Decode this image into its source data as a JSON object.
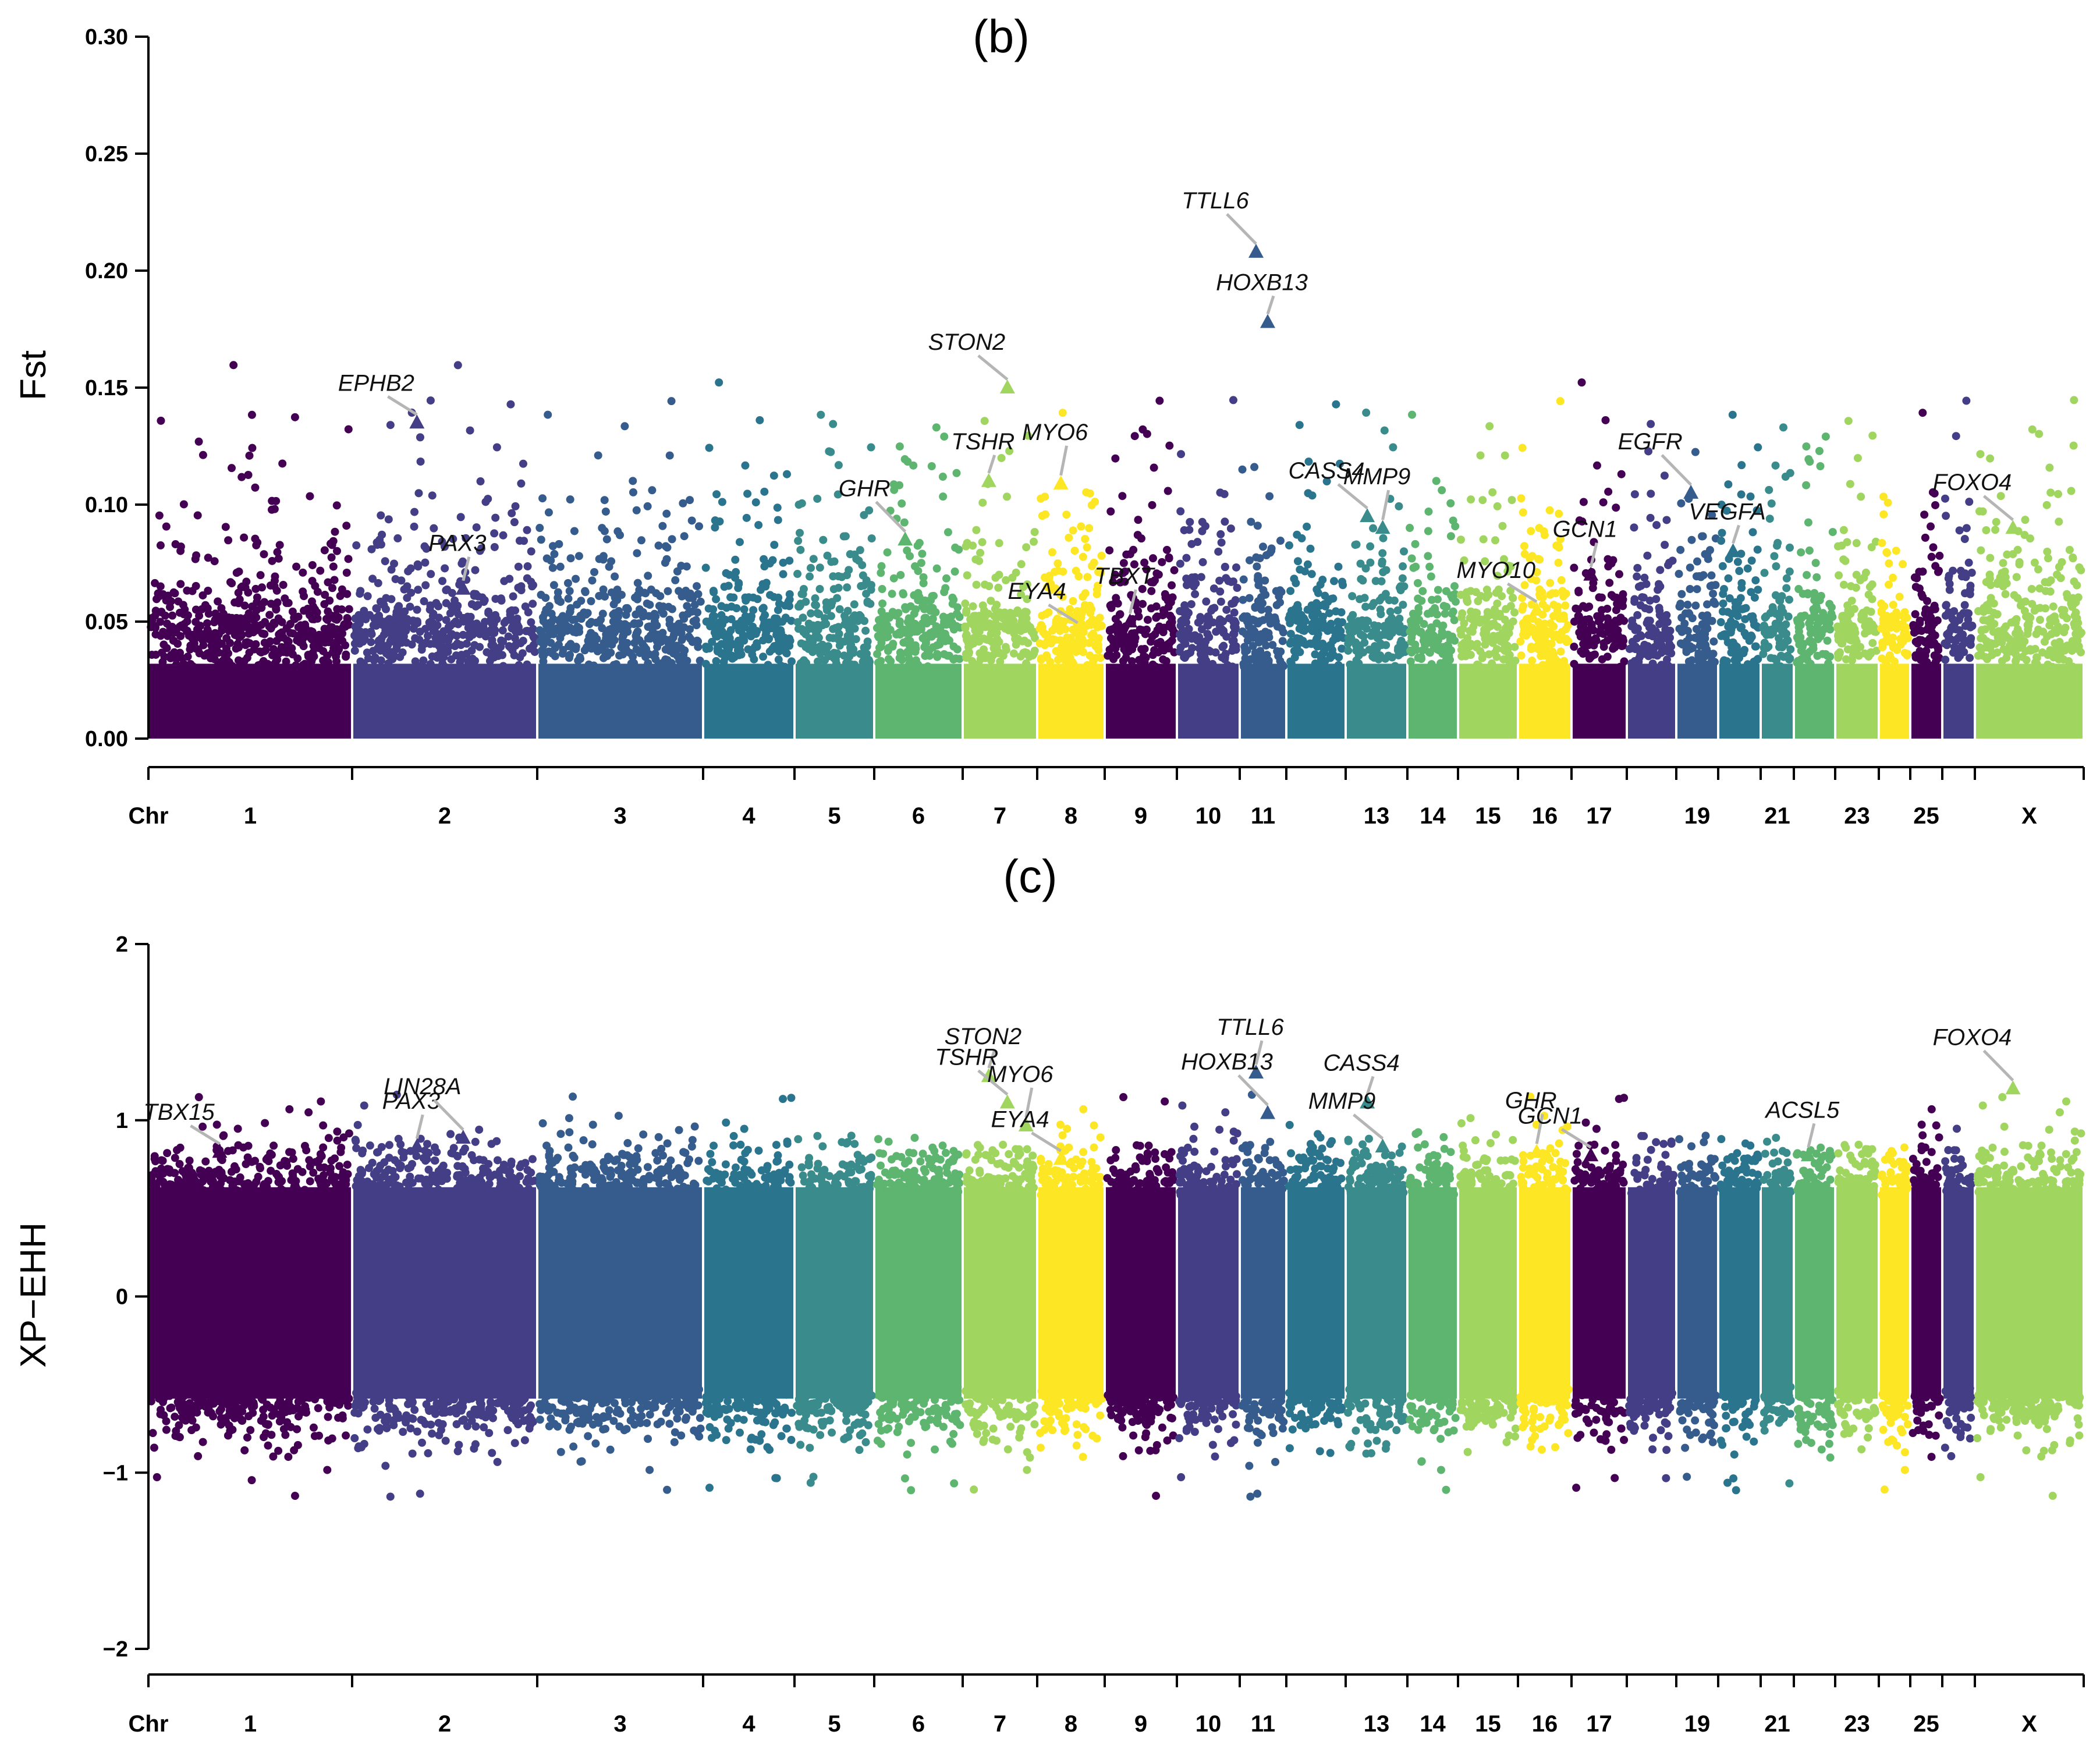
{
  "chart_data": [
    {
      "id": "b",
      "type": "scatter",
      "subtype": "manhattan",
      "title": "(b)",
      "xlabel": "Chr",
      "ylabel": "Fst",
      "ylim": [
        0.0,
        0.3
      ],
      "yticks": [
        0.0,
        0.05,
        0.1,
        0.15,
        0.2,
        0.25,
        0.3
      ],
      "ytick_labels": [
        "0.00",
        "0.05",
        "0.10",
        "0.15",
        "0.20",
        "0.25",
        "0.30"
      ],
      "grid": false,
      "chromosome_labels": [
        "1",
        "2",
        "3",
        "4",
        "5",
        "6",
        "7",
        "8",
        "9",
        "10",
        "11",
        "13",
        "14",
        "15",
        "16",
        "17",
        "19",
        "21",
        "23",
        "25",
        "X"
      ],
      "genes": [
        {
          "name": "EPHB2",
          "chr": "2",
          "value": 0.135
        },
        {
          "name": "PAX3",
          "chr": "2",
          "value": 0.064
        },
        {
          "name": "GHR",
          "chr": "6",
          "value": 0.085
        },
        {
          "name": "TSHR",
          "chr": "7",
          "value": 0.11
        },
        {
          "name": "STON2",
          "chr": "7",
          "value": 0.15
        },
        {
          "name": "MYO6",
          "chr": "8",
          "value": 0.109
        },
        {
          "name": "EYA4",
          "chr": "8",
          "value": 0.046
        },
        {
          "name": "TBXT",
          "chr": "9",
          "value": 0.05
        },
        {
          "name": "TTLL6",
          "chr": "11",
          "value": 0.208
        },
        {
          "name": "HOXB13",
          "chr": "11",
          "value": 0.178
        },
        {
          "name": "CASS4",
          "chr": "13",
          "value": 0.095
        },
        {
          "name": "MMP9",
          "chr": "13",
          "value": 0.09
        },
        {
          "name": "MYO10",
          "chr": "16",
          "value": 0.055
        },
        {
          "name": "GCN1",
          "chr": "17",
          "value": 0.07
        },
        {
          "name": "EGFR",
          "chr": "19",
          "value": 0.105
        },
        {
          "name": "VEGFA",
          "chr": "20",
          "value": 0.08
        },
        {
          "name": "FOXO4",
          "chr": "X",
          "value": 0.09
        }
      ]
    },
    {
      "id": "c",
      "type": "scatter",
      "subtype": "manhattan",
      "title": "(c)",
      "xlabel": "Chr",
      "ylabel": "XP−EHH",
      "ylim": [
        -2,
        2
      ],
      "yticks": [
        -2,
        -1,
        0,
        1,
        2
      ],
      "ytick_labels": [
        "−2",
        "−1",
        "0",
        "1",
        "2"
      ],
      "grid": false,
      "chromosome_labels": [
        "1",
        "2",
        "3",
        "4",
        "5",
        "6",
        "7",
        "8",
        "9",
        "10",
        "11",
        "13",
        "14",
        "15",
        "16",
        "17",
        "19",
        "21",
        "23",
        "25",
        "X"
      ],
      "genes": [
        {
          "name": "TBX15",
          "chr": "1",
          "value": 0.82
        },
        {
          "name": "PAX3",
          "chr": "2",
          "value": 0.85
        },
        {
          "name": "LIN28A",
          "chr": "2",
          "value": 0.9
        },
        {
          "name": "STON2",
          "chr": "7",
          "value": 1.25
        },
        {
          "name": "TSHR",
          "chr": "7",
          "value": 1.1
        },
        {
          "name": "MYO6",
          "chr": "7",
          "value": 0.97
        },
        {
          "name": "EYA4",
          "chr": "8",
          "value": 0.78
        },
        {
          "name": "TTLL6",
          "chr": "11",
          "value": 1.27
        },
        {
          "name": "HOXB13",
          "chr": "11",
          "value": 1.04
        },
        {
          "name": "CASS4",
          "chr": "13",
          "value": 1.1
        },
        {
          "name": "MMP9",
          "chr": "13",
          "value": 0.85
        },
        {
          "name": "GHR",
          "chr": "16",
          "value": 0.82
        },
        {
          "name": "GCN1",
          "chr": "17",
          "value": 0.8
        },
        {
          "name": "ACSL5",
          "chr": "22",
          "value": 0.8
        },
        {
          "name": "FOXO4",
          "chr": "X",
          "value": 1.18
        }
      ]
    }
  ],
  "chromosome_colors": [
    "#440154",
    "#433e85",
    "#365c8d",
    "#2b748e",
    "#3a8b8c",
    "#5db56f",
    "#a0d65f",
    "#fde725"
  ]
}
